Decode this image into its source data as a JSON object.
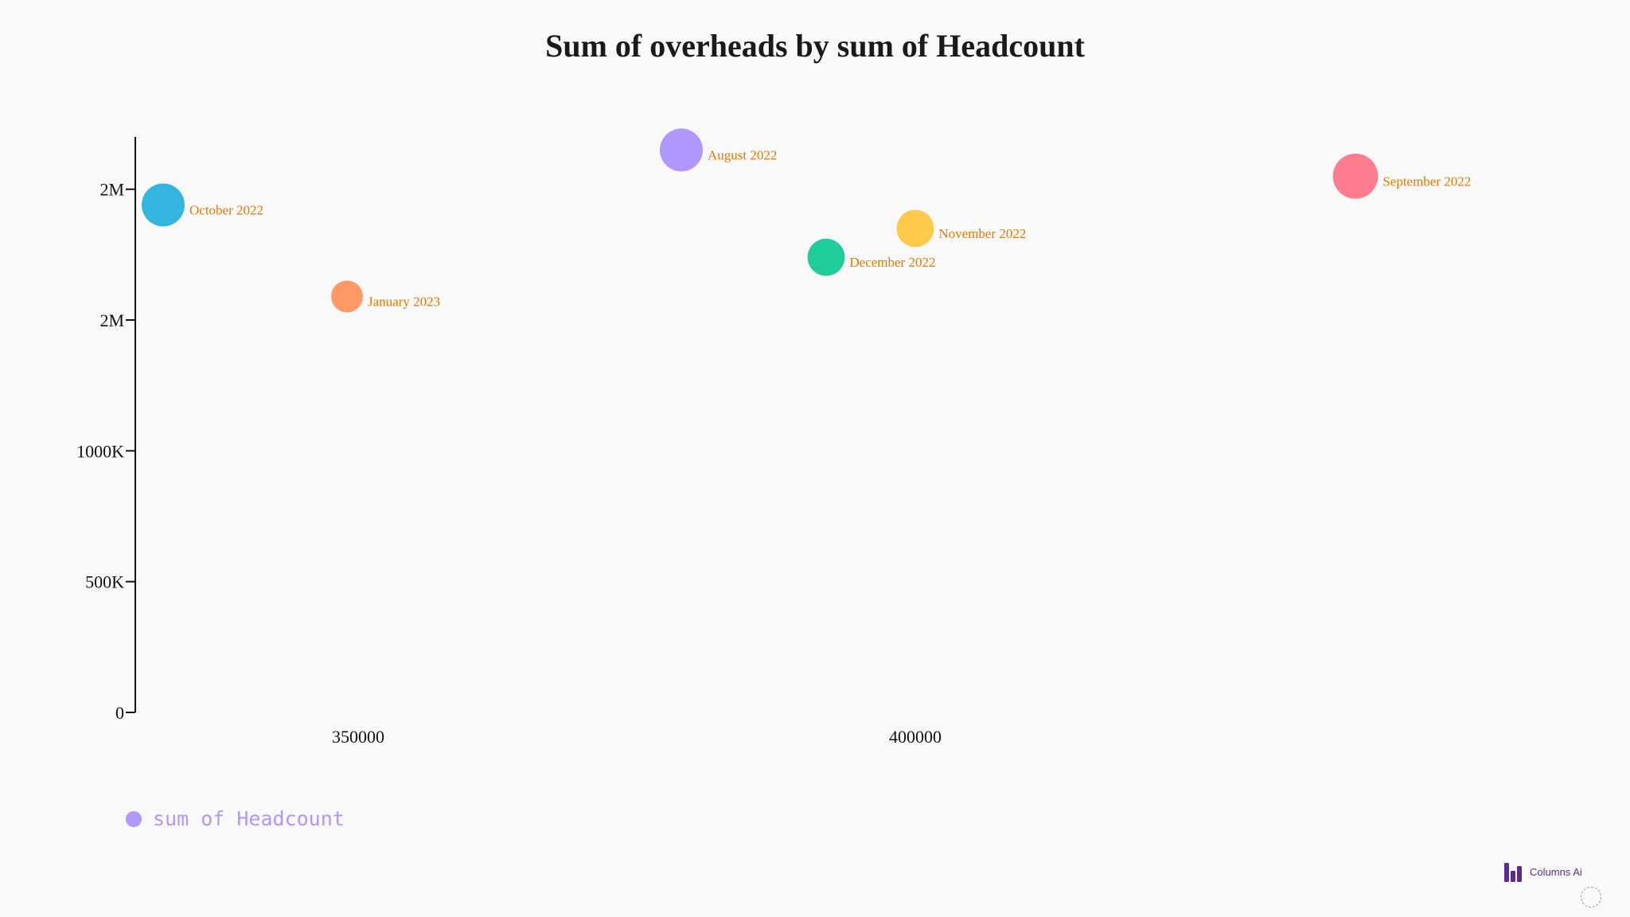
{
  "chart_data": {
    "type": "scatter",
    "title": "Sum of overheads by sum of Headcount",
    "xlabel": "",
    "ylabel": "",
    "xlim": [
      330000,
      460000
    ],
    "ylim": [
      0,
      2200000
    ],
    "x_ticks": [
      {
        "value": 350000,
        "label": "350000"
      },
      {
        "value": 400000,
        "label": "400000"
      }
    ],
    "y_ticks": [
      {
        "value": 0,
        "label": "0"
      },
      {
        "value": 500000,
        "label": "500K"
      },
      {
        "value": 1000000,
        "label": "1000K"
      },
      {
        "value": 1500000,
        "label": "2M"
      },
      {
        "value": 2000000,
        "label": "2M"
      }
    ],
    "grid": false,
    "legend_position": "bottom-left",
    "series": [
      {
        "name": "sum of Headcount",
        "color": "#b197fc",
        "points": [
          {
            "label": "October 2022",
            "x": 332500,
            "y": 1940000,
            "size": 1.0,
            "color": "#33b5e0"
          },
          {
            "label": "January 2023",
            "x": 349000,
            "y": 1590000,
            "size": 0.55,
            "color": "#ff9966"
          },
          {
            "label": "August 2022",
            "x": 379000,
            "y": 2150000,
            "size": 1.0,
            "color": "#b197fc"
          },
          {
            "label": "December 2022",
            "x": 392000,
            "y": 1740000,
            "size": 0.75,
            "color": "#20cc9b"
          },
          {
            "label": "November 2022",
            "x": 400000,
            "y": 1850000,
            "size": 0.75,
            "color": "#ffc94a"
          },
          {
            "label": "September 2022",
            "x": 439500,
            "y": 2050000,
            "size": 1.1,
            "color": "#ff7b8f"
          }
        ]
      }
    ]
  },
  "legend": {
    "label": "sum of Headcount",
    "color": "#b197fc"
  },
  "brand": {
    "label": "Columns Ai",
    "icon": "bar-chart-logo-icon",
    "color": "#5b2d91"
  },
  "colors": {
    "label_text": "#e07b00",
    "axis": "#111111",
    "background": "#f9f9f9"
  }
}
